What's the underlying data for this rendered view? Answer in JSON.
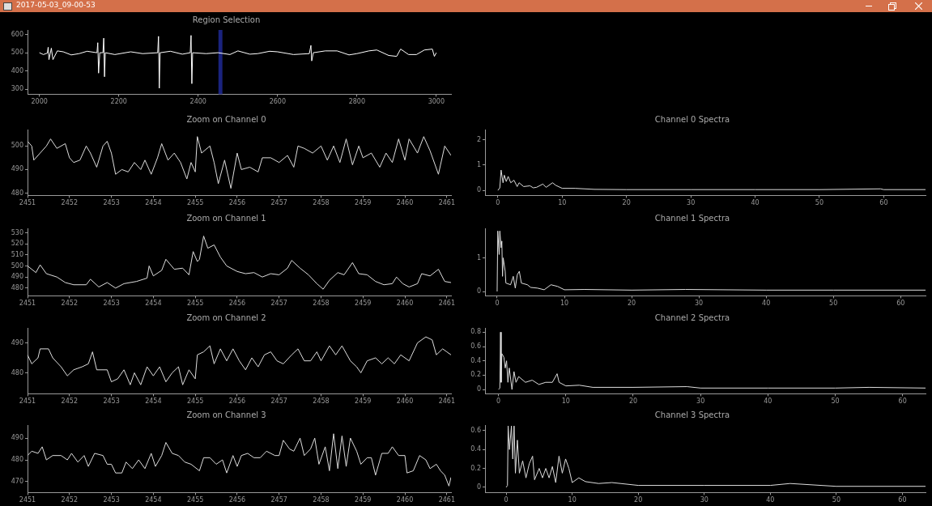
{
  "chart_data": [
    {
      "type": "line",
      "title": "Region Selection",
      "annotations": [
        "2017-05-03_09-00-53"
      ],
      "xlim": [
        1970,
        3037
      ],
      "xticks": [
        2000,
        2200,
        2400,
        2600,
        2800,
        3000
      ],
      "ylim": [
        272,
        625
      ],
      "yticks": [
        300,
        400,
        500,
        600
      ],
      "grid": false,
      "legend": false,
      "marker": "none",
      "line_style": "solid",
      "bands": [
        {
          "axis": "x",
          "from": 2451,
          "to": 2461,
          "color": "#1a237e"
        }
      ],
      "x": [
        2000,
        2010,
        2020,
        2022,
        2024,
        2030,
        2034,
        2045,
        2060,
        2080,
        2100,
        2120,
        2145,
        2147,
        2149,
        2152,
        2160,
        2162,
        2164,
        2166,
        2190,
        2230,
        2260,
        2298,
        2300,
        2302,
        2304,
        2330,
        2360,
        2380,
        2382,
        2384,
        2386,
        2420,
        2450,
        2480,
        2500,
        2530,
        2550,
        2580,
        2600,
        2640,
        2680,
        2684,
        2686,
        2690,
        2720,
        2750,
        2780,
        2800,
        2830,
        2850,
        2880,
        2900,
        2910,
        2930,
        2950,
        2970,
        2990,
        2995,
        3000
      ],
      "series": [
        {
          "color": "#ffffff",
          "values": [
            500,
            490,
            498,
            530,
            462,
            525,
            462,
            510,
            505,
            488,
            495,
            508,
            500,
            555,
            388,
            500,
            500,
            580,
            368,
            500,
            490,
            505,
            495,
            500,
            590,
            305,
            500,
            508,
            492,
            500,
            595,
            330,
            500,
            495,
            500,
            490,
            510,
            492,
            495,
            508,
            505,
            490,
            495,
            540,
            455,
            500,
            510,
            510,
            488,
            495,
            510,
            515,
            485,
            480,
            520,
            490,
            490,
            515,
            520,
            480,
            500
          ]
        }
      ]
    },
    {
      "type": "line",
      "title": "Zoom on Channel 0",
      "xlim": [
        2451,
        2461.1
      ],
      "xticks": [
        2451,
        2452,
        2453,
        2454,
        2455,
        2456,
        2457,
        2458,
        2459,
        2460,
        2461
      ],
      "ylim": [
        479,
        507
      ],
      "yticks": [
        480,
        490,
        500
      ],
      "grid": false,
      "legend": false,
      "marker": "none",
      "line_style": "solid",
      "x": [
        2451,
        2451.1,
        2451.15,
        2451.3,
        2451.45,
        2451.55,
        2451.7,
        2451.9,
        2452,
        2452.1,
        2452.25,
        2452.4,
        2452.5,
        2452.65,
        2452.8,
        2452.9,
        2453,
        2453.1,
        2453.25,
        2453.4,
        2453.55,
        2453.7,
        2453.8,
        2453.95,
        2454.1,
        2454.2,
        2454.35,
        2454.5,
        2454.65,
        2454.8,
        2454.9,
        2455,
        2455.05,
        2455.15,
        2455.35,
        2455.45,
        2455.55,
        2455.7,
        2455.85,
        2456,
        2456.1,
        2456.3,
        2456.5,
        2456.6,
        2456.8,
        2457,
        2457.2,
        2457.35,
        2457.45,
        2457.6,
        2457.8,
        2458,
        2458.15,
        2458.3,
        2458.45,
        2458.6,
        2458.75,
        2458.9,
        2459,
        2459.2,
        2459.4,
        2459.55,
        2459.7,
        2459.85,
        2460,
        2460.1,
        2460.3,
        2460.45,
        2460.6,
        2460.8,
        2460.95,
        2461.1
      ],
      "series": [
        {
          "color": "#dddddd",
          "values": [
            502,
            500,
            494,
            497,
            500,
            503,
            499,
            501,
            495,
            493,
            494,
            500,
            497,
            491,
            500,
            502,
            497,
            488,
            490,
            489,
            493,
            490,
            494,
            488,
            495,
            501,
            494,
            497,
            493,
            486,
            493,
            489,
            504,
            497,
            500,
            493,
            484,
            494,
            482,
            497,
            490,
            491,
            489,
            495,
            495,
            493,
            496,
            491,
            500,
            499,
            497,
            500,
            494,
            500,
            493,
            503,
            492,
            500,
            495,
            497,
            491,
            497,
            493,
            503,
            494,
            503,
            497,
            504,
            498,
            488,
            500,
            496
          ]
        }
      ]
    },
    {
      "type": "line",
      "title": "Channel 0 Spectra",
      "xlim": [
        -2,
        66.5
      ],
      "xticks": [
        0,
        10,
        20,
        30,
        40,
        50,
        60
      ],
      "ylim": [
        -0.2,
        2.4
      ],
      "yticks": [
        0,
        1,
        2
      ],
      "grid": false,
      "legend": false,
      "marker": "none",
      "line_style": "solid",
      "x": [
        0,
        0.3,
        0.5,
        0.8,
        1,
        1.3,
        1.6,
        2,
        2.5,
        3,
        3.3,
        4,
        5,
        5.5,
        6,
        7,
        7.5,
        8.5,
        9,
        10,
        12,
        15,
        20,
        30,
        40,
        50,
        59.5,
        60,
        66.5
      ],
      "series": [
        {
          "color": "#dddddd",
          "values": [
            0,
            0.1,
            0.8,
            0.3,
            0.6,
            0.35,
            0.55,
            0.3,
            0.4,
            0.15,
            0.3,
            0.15,
            0.18,
            0.1,
            0.12,
            0.25,
            0.12,
            0.3,
            0.2,
            0.08,
            0.08,
            0.04,
            0.03,
            0.03,
            0.03,
            0.03,
            0.06,
            0.03,
            0.03
          ]
        }
      ]
    },
    {
      "type": "line",
      "title": "Zoom on Channel 1",
      "xlim": [
        2451,
        2461.1
      ],
      "xticks": [
        2451,
        2452,
        2453,
        2454,
        2455,
        2456,
        2457,
        2458,
        2459,
        2460,
        2461
      ],
      "ylim": [
        473,
        534
      ],
      "yticks": [
        480,
        490,
        500,
        510,
        520,
        530
      ],
      "grid": false,
      "legend": false,
      "marker": "none",
      "line_style": "solid",
      "x": [
        2451,
        2451.2,
        2451.3,
        2451.45,
        2451.7,
        2451.9,
        2452.1,
        2452.4,
        2452.5,
        2452.7,
        2452.9,
        2453.1,
        2453.3,
        2453.6,
        2453.85,
        2453.9,
        2454,
        2454.2,
        2454.3,
        2454.5,
        2454.7,
        2454.85,
        2454.95,
        2455.05,
        2455.1,
        2455.2,
        2455.3,
        2455.45,
        2455.6,
        2455.75,
        2456,
        2456.2,
        2456.4,
        2456.6,
        2456.8,
        2457,
        2457.2,
        2457.3,
        2457.5,
        2457.7,
        2457.9,
        2458.05,
        2458.2,
        2458.4,
        2458.55,
        2458.75,
        2458.9,
        2459.1,
        2459.3,
        2459.5,
        2459.7,
        2459.8,
        2459.95,
        2460.1,
        2460.3,
        2460.4,
        2460.6,
        2460.8,
        2460.95,
        2461.1
      ],
      "series": [
        {
          "color": "#dddddd",
          "values": [
            500,
            494,
            501,
            493,
            490,
            485,
            483,
            483,
            488,
            481,
            485,
            480,
            484,
            486,
            489,
            500,
            491,
            496,
            506,
            497,
            498,
            492,
            513,
            504,
            506,
            527,
            516,
            519,
            508,
            500,
            495,
            493,
            494,
            490,
            493,
            492,
            498,
            505,
            498,
            492,
            484,
            479,
            487,
            494,
            492,
            503,
            493,
            492,
            486,
            483,
            484,
            490,
            484,
            481,
            484,
            493,
            491,
            497,
            486,
            485
          ]
        }
      ]
    },
    {
      "type": "line",
      "title": "Channel 1 Spectra",
      "xlim": [
        -1.8,
        63.7
      ],
      "xticks": [
        0,
        10,
        20,
        30,
        40,
        50,
        60
      ],
      "ylim": [
        -0.13,
        1.88
      ],
      "yticks": [
        0,
        1
      ],
      "grid": false,
      "legend": false,
      "marker": "none",
      "line_style": "solid",
      "x": [
        0,
        0.1,
        0.3,
        0.4,
        0.6,
        0.7,
        0.8,
        0.9,
        1.2,
        1.3,
        2,
        2.4,
        2.7,
        3,
        3.3,
        3.6,
        4.5,
        5,
        6,
        7,
        8,
        9,
        10,
        13,
        20,
        28,
        40,
        50,
        63.7
      ],
      "series": [
        {
          "color": "#dddddd",
          "values": [
            0,
            1.8,
            1.1,
            1.8,
            1.3,
            1.5,
            0.45,
            1,
            0.6,
            0.25,
            0.2,
            0.45,
            0.1,
            0.5,
            0.6,
            0.25,
            0.2,
            0.12,
            0.1,
            0.05,
            0.2,
            0.15,
            0.05,
            0.06,
            0.04,
            0.06,
            0.04,
            0.04,
            0.04
          ]
        }
      ]
    },
    {
      "type": "line",
      "title": "Zoom on Channel 2",
      "xlim": [
        2451,
        2461.1
      ],
      "xticks": [
        2451,
        2452,
        2453,
        2454,
        2455,
        2456,
        2457,
        2458,
        2459,
        2460,
        2461
      ],
      "ylim": [
        473,
        495
      ],
      "yticks": [
        480,
        490
      ],
      "grid": false,
      "legend": false,
      "marker": "none",
      "line_style": "solid",
      "x": [
        2451,
        2451.1,
        2451.25,
        2451.3,
        2451.5,
        2451.6,
        2451.8,
        2451.95,
        2452.1,
        2452.3,
        2452.45,
        2452.55,
        2452.65,
        2452.9,
        2453,
        2453.15,
        2453.3,
        2453.45,
        2453.55,
        2453.7,
        2453.85,
        2454,
        2454.15,
        2454.3,
        2454.45,
        2454.6,
        2454.7,
        2454.85,
        2455,
        2455.05,
        2455.2,
        2455.35,
        2455.45,
        2455.6,
        2455.75,
        2455.9,
        2456.05,
        2456.2,
        2456.35,
        2456.5,
        2456.65,
        2456.8,
        2456.95,
        2457.1,
        2457.3,
        2457.45,
        2457.6,
        2457.75,
        2457.9,
        2458,
        2458.2,
        2458.35,
        2458.5,
        2458.7,
        2458.85,
        2458.95,
        2459.1,
        2459.3,
        2459.45,
        2459.6,
        2459.75,
        2459.9,
        2460.1,
        2460.3,
        2460.5,
        2460.65,
        2460.75,
        2460.9,
        2461,
        2461.1
      ],
      "series": [
        {
          "color": "#dddddd",
          "values": [
            486,
            483,
            485,
            488,
            488,
            485,
            482,
            479,
            481,
            482,
            483,
            487,
            481,
            481,
            477,
            478,
            481,
            476,
            480,
            476,
            482,
            479,
            482,
            477,
            480,
            482,
            476,
            481,
            478,
            486,
            487,
            489,
            483,
            488,
            484,
            488,
            484,
            481,
            485,
            482,
            486,
            487,
            484,
            483,
            486,
            488,
            484,
            484,
            487,
            484,
            489,
            486,
            489,
            484,
            482,
            480,
            484,
            485,
            483,
            485,
            483,
            486,
            484,
            490,
            492,
            491,
            486,
            488,
            487,
            486
          ]
        }
      ]
    },
    {
      "type": "line",
      "title": "Channel 2 Spectra",
      "xlim": [
        -2,
        63.4
      ],
      "xticks": [
        0,
        10,
        20,
        30,
        40,
        50,
        60
      ],
      "ylim": [
        -0.06,
        0.86
      ],
      "yticks": [
        0,
        0.2,
        0.4,
        0.6,
        0.8
      ],
      "grid": false,
      "legend": false,
      "marker": "none",
      "line_style": "solid",
      "x": [
        0,
        0.2,
        0.3,
        0.4,
        0.5,
        0.8,
        1,
        1.2,
        1.4,
        1.6,
        2,
        2.3,
        2.6,
        3,
        4,
        5,
        6,
        7,
        8,
        8.7,
        9,
        10,
        12,
        14,
        20,
        28,
        30,
        40,
        50,
        55,
        63.4
      ],
      "series": [
        {
          "color": "#dddddd",
          "values": [
            0,
            0.02,
            0.8,
            0.1,
            0.5,
            0.45,
            0.3,
            0.4,
            0.1,
            0.3,
            0,
            0.25,
            0.1,
            0.18,
            0.1,
            0.13,
            0.07,
            0.1,
            0.1,
            0.22,
            0.1,
            0.05,
            0.06,
            0.03,
            0.03,
            0.04,
            0.02,
            0.02,
            0.02,
            0.03,
            0.02
          ]
        }
      ]
    },
    {
      "type": "line",
      "title": "Zoom on Channel 3",
      "xlim": [
        2451,
        2461.1
      ],
      "xticks": [
        2451,
        2452,
        2453,
        2454,
        2455,
        2456,
        2457,
        2458,
        2459,
        2460,
        2461
      ],
      "ylim": [
        465,
        496
      ],
      "yticks": [
        470,
        480,
        490
      ],
      "grid": false,
      "legend": false,
      "marker": "none",
      "line_style": "solid",
      "x": [
        2451,
        2451.1,
        2451.25,
        2451.35,
        2451.45,
        2451.6,
        2451.8,
        2451.95,
        2452.05,
        2452.2,
        2452.35,
        2452.45,
        2452.6,
        2452.8,
        2452.9,
        2453,
        2453.1,
        2453.25,
        2453.35,
        2453.5,
        2453.65,
        2453.8,
        2453.95,
        2454.05,
        2454.2,
        2454.3,
        2454.45,
        2454.6,
        2454.75,
        2454.9,
        2455.1,
        2455.2,
        2455.35,
        2455.5,
        2455.65,
        2455.75,
        2455.9,
        2456,
        2456.1,
        2456.25,
        2456.4,
        2456.55,
        2456.7,
        2456.9,
        2457,
        2457.1,
        2457.25,
        2457.35,
        2457.5,
        2457.6,
        2457.75,
        2457.85,
        2457.95,
        2458.1,
        2458.2,
        2458.3,
        2458.4,
        2458.5,
        2458.6,
        2458.7,
        2458.85,
        2458.95,
        2459.1,
        2459.2,
        2459.3,
        2459.45,
        2459.6,
        2459.7,
        2459.85,
        2460,
        2460.05,
        2460.2,
        2460.35,
        2460.5,
        2460.6,
        2460.75,
        2460.85,
        2460.95,
        2461.05,
        2461.1
      ],
      "series": [
        {
          "color": "#dddddd",
          "values": [
            482,
            484,
            483,
            486,
            480,
            482,
            482,
            480,
            483,
            479,
            482,
            477,
            483,
            482,
            478,
            478,
            474,
            474,
            479,
            476,
            480,
            476,
            483,
            477,
            482,
            488,
            483,
            482,
            479,
            478,
            475,
            481,
            481,
            478,
            480,
            474,
            482,
            477,
            482,
            483,
            481,
            481,
            484,
            482,
            482,
            489,
            485,
            484,
            490,
            482,
            485,
            490,
            478,
            486,
            475,
            492,
            476,
            491,
            477,
            490,
            484,
            478,
            481,
            481,
            473,
            483,
            483,
            486,
            482,
            482,
            474,
            475,
            482,
            480,
            476,
            478,
            475,
            473,
            468,
            472
          ]
        }
      ]
    },
    {
      "type": "line",
      "title": "Channel 3 Spectra",
      "xlim": [
        -3.2,
        63.5
      ],
      "xticks": [
        0,
        10,
        20,
        30,
        40,
        50,
        60
      ],
      "ylim": [
        -0.056,
        0.66
      ],
      "yticks": [
        0,
        0.2,
        0.4,
        0.6
      ],
      "grid": false,
      "legend": false,
      "marker": "none",
      "line_style": "solid",
      "x": [
        0,
        0.2,
        0.3,
        0.5,
        0.8,
        1,
        1.2,
        1.4,
        1.7,
        2,
        2.5,
        3,
        3.5,
        4,
        4.3,
        5,
        5.5,
        6,
        6.5,
        7,
        7.5,
        8,
        8.5,
        9,
        9.5,
        10,
        11,
        12,
        14,
        16,
        20,
        30,
        40,
        43,
        50,
        63.5
      ],
      "series": [
        {
          "color": "#dddddd",
          "values": [
            0,
            0.02,
            0.65,
            0.4,
            0.65,
            0.3,
            0.65,
            0.15,
            0.5,
            0.15,
            0.28,
            0.1,
            0.25,
            0.33,
            0.08,
            0.2,
            0.1,
            0.2,
            0.1,
            0.22,
            0.05,
            0.33,
            0.15,
            0.3,
            0.2,
            0.05,
            0.1,
            0.06,
            0.04,
            0.05,
            0.02,
            0.02,
            0.02,
            0.04,
            0.01,
            0.01
          ]
        }
      ]
    }
  ]
}
